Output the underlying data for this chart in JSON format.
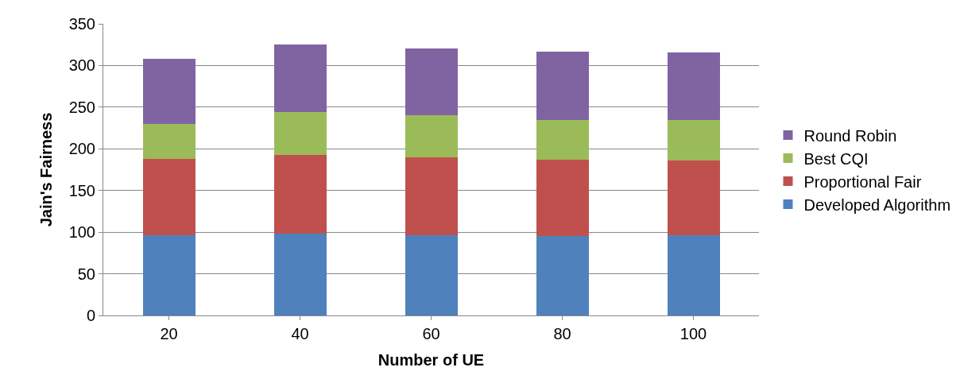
{
  "chart_data": {
    "type": "bar",
    "stacked": true,
    "xlabel": "Number of UE",
    "ylabel": "Jain's Fairness",
    "categories": [
      "20",
      "40",
      "60",
      "80",
      "100"
    ],
    "series": [
      {
        "name": "Developed Algorithm",
        "color": "#4f81bd",
        "values": [
          96,
          98,
          96,
          95,
          96
        ]
      },
      {
        "name": "Proportional Fair",
        "color": "#c0504d",
        "values": [
          92,
          95,
          94,
          92,
          90
        ]
      },
      {
        "name": "Best CQI",
        "color": "#9bbb59",
        "values": [
          42,
          51,
          50,
          48,
          49
        ]
      },
      {
        "name": "Round Robin",
        "color": "#8064a2",
        "values": [
          78,
          81,
          80,
          82,
          81
        ]
      }
    ],
    "ylim": [
      0,
      350
    ],
    "yticks": [
      0,
      50,
      100,
      150,
      200,
      250,
      300,
      350
    ],
    "grid": "y",
    "legend": "right"
  }
}
